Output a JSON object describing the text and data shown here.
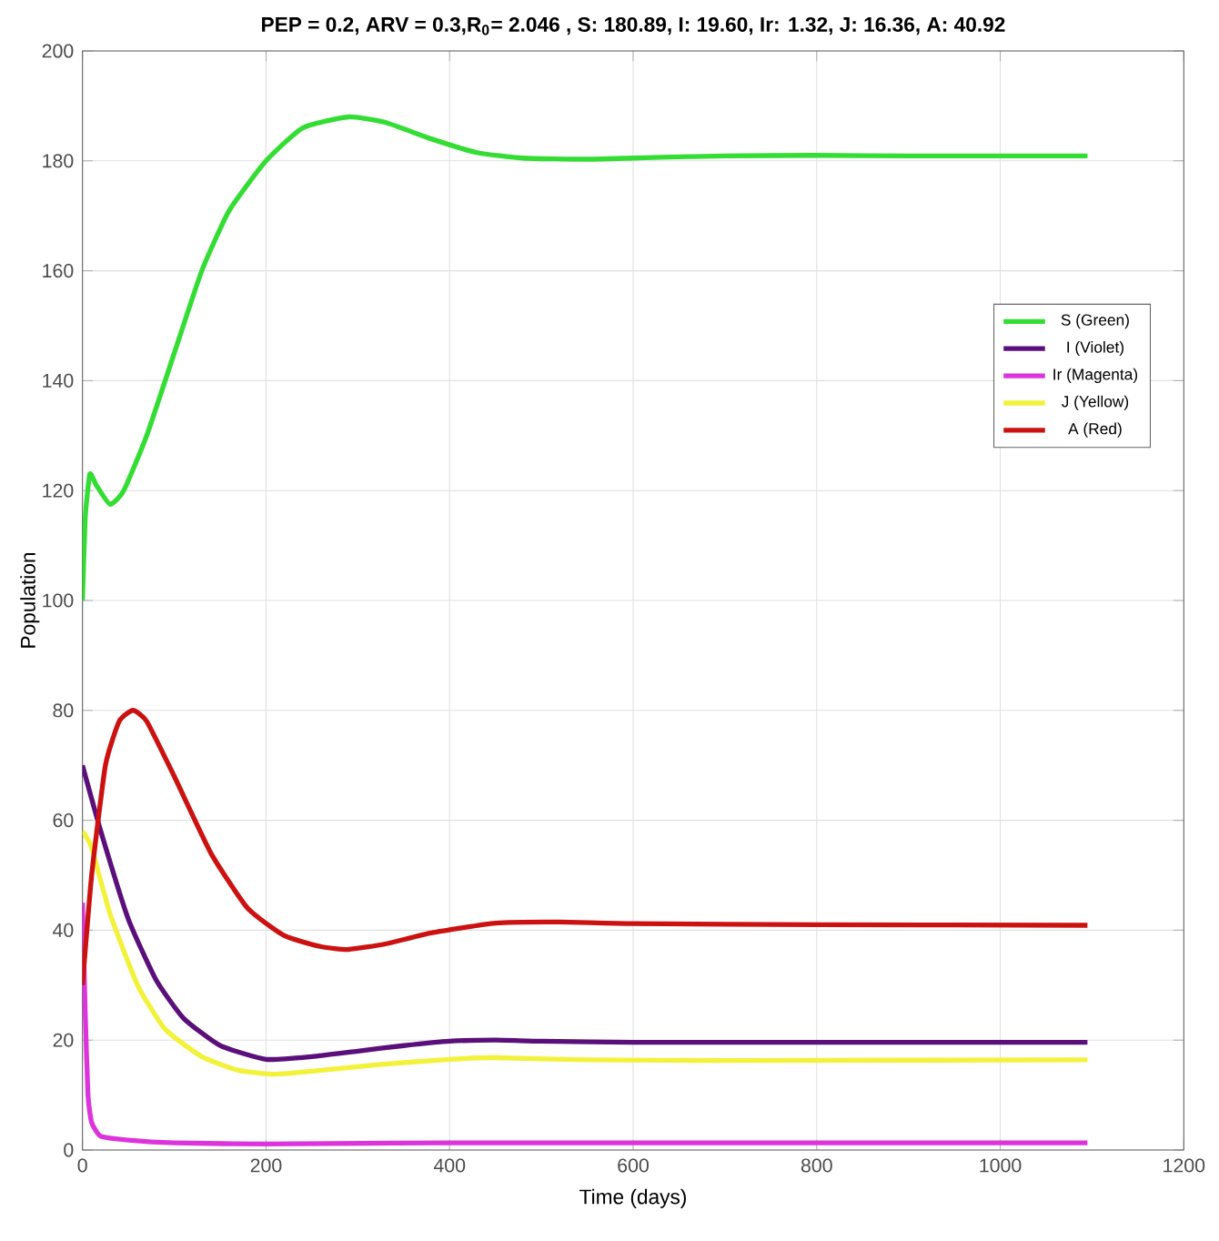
{
  "chart_data": {
    "type": "line",
    "title": "PEP = 0.2, ARV = 0.3,R$_{0}$= 2.046 , S: 180.89, I: 19.60, Ir: 1.32, J: 16.36, A: 40.92",
    "xlabel": "Time (days)",
    "ylabel": "Population",
    "xlim": [
      0,
      1200
    ],
    "xticks": [
      0,
      200,
      400,
      600,
      800,
      1000,
      1200
    ],
    "ylim": [
      0,
      200
    ],
    "yticks": [
      0,
      20,
      40,
      60,
      80,
      100,
      120,
      140,
      160,
      180,
      200
    ],
    "grid": true,
    "legend": "right",
    "marker": "none",
    "line_style": "solid",
    "series": [
      {
        "name": "S (Green)",
        "color": "#33dd33",
        "x": [
          0,
          3,
          8,
          15,
          30,
          45,
          70,
          100,
          130,
          160,
          200,
          240,
          290,
          330,
          380,
          430,
          480,
          550,
          620,
          700,
          800,
          900,
          1000,
          1095
        ],
        "values": [
          100,
          115,
          123,
          121,
          117.5,
          120,
          130,
          145,
          160,
          171,
          180,
          186,
          188,
          187,
          184,
          181.5,
          180.5,
          180.3,
          180.6,
          180.9,
          181,
          180.9,
          180.9,
          180.9
        ]
      },
      {
        "name": "I (Violet)",
        "color": "#5a0f7a",
        "x": [
          0,
          20,
          50,
          80,
          110,
          150,
          200,
          250,
          300,
          350,
          400,
          450,
          500,
          600,
          800,
          1095
        ],
        "values": [
          70,
          58,
          42,
          31,
          24,
          19,
          16.5,
          17,
          18,
          19,
          19.8,
          20,
          19.8,
          19.6,
          19.6,
          19.6
        ]
      },
      {
        "name": "Ir (Magenta)",
        "color": "#dd33dd",
        "x": [
          0,
          3,
          6,
          10,
          20,
          50,
          100,
          200,
          400,
          1095
        ],
        "values": [
          45,
          25,
          10,
          5,
          2.5,
          1.8,
          1.3,
          1.1,
          1.3,
          1.3
        ]
      },
      {
        "name": "J (Yellow)",
        "color": "#f2f23a",
        "x": [
          0,
          10,
          30,
          60,
          90,
          130,
          170,
          210,
          260,
          320,
          400,
          450,
          550,
          700,
          1095
        ],
        "values": [
          58,
          55,
          43,
          30,
          22,
          17,
          14.5,
          13.8,
          14.5,
          15.5,
          16.5,
          16.8,
          16.4,
          16.3,
          16.4
        ]
      },
      {
        "name": "A (Red)",
        "color": "#cc1111",
        "x": [
          0,
          10,
          25,
          40,
          55,
          70,
          100,
          140,
          180,
          220,
          260,
          290,
          330,
          380,
          450,
          520,
          600,
          800,
          1095
        ],
        "values": [
          30,
          50,
          70,
          78,
          80,
          78,
          68,
          54,
          44,
          39,
          37,
          36.5,
          37.5,
          39.5,
          41.3,
          41.5,
          41.2,
          41,
          40.9
        ]
      }
    ]
  }
}
